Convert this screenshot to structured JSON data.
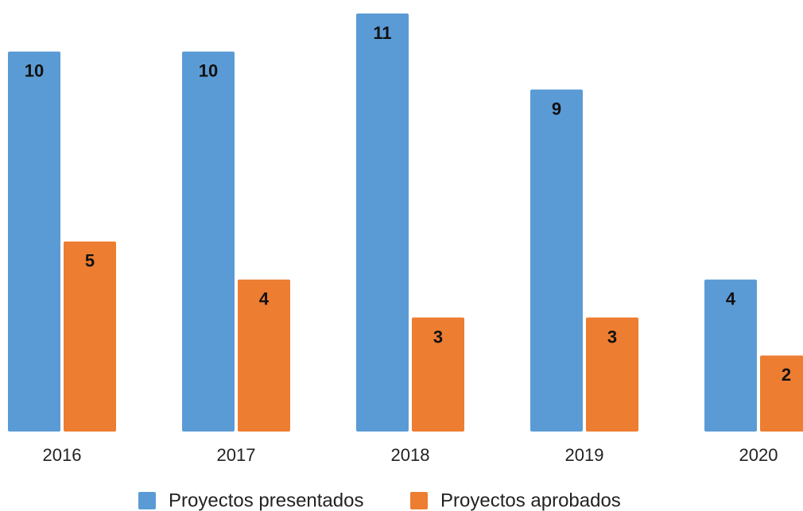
{
  "chart_data": {
    "type": "bar",
    "categories": [
      "2016",
      "2017",
      "2018",
      "2019",
      "2020"
    ],
    "series": [
      {
        "name": "Proyectos presentados",
        "color": "#5b9bd5",
        "values": [
          10,
          10,
          11,
          9,
          4
        ]
      },
      {
        "name": "Proyectos aprobados",
        "color": "#ed7d31",
        "values": [
          5,
          4,
          3,
          3,
          2
        ]
      }
    ],
    "ylim": [
      0,
      11
    ]
  }
}
